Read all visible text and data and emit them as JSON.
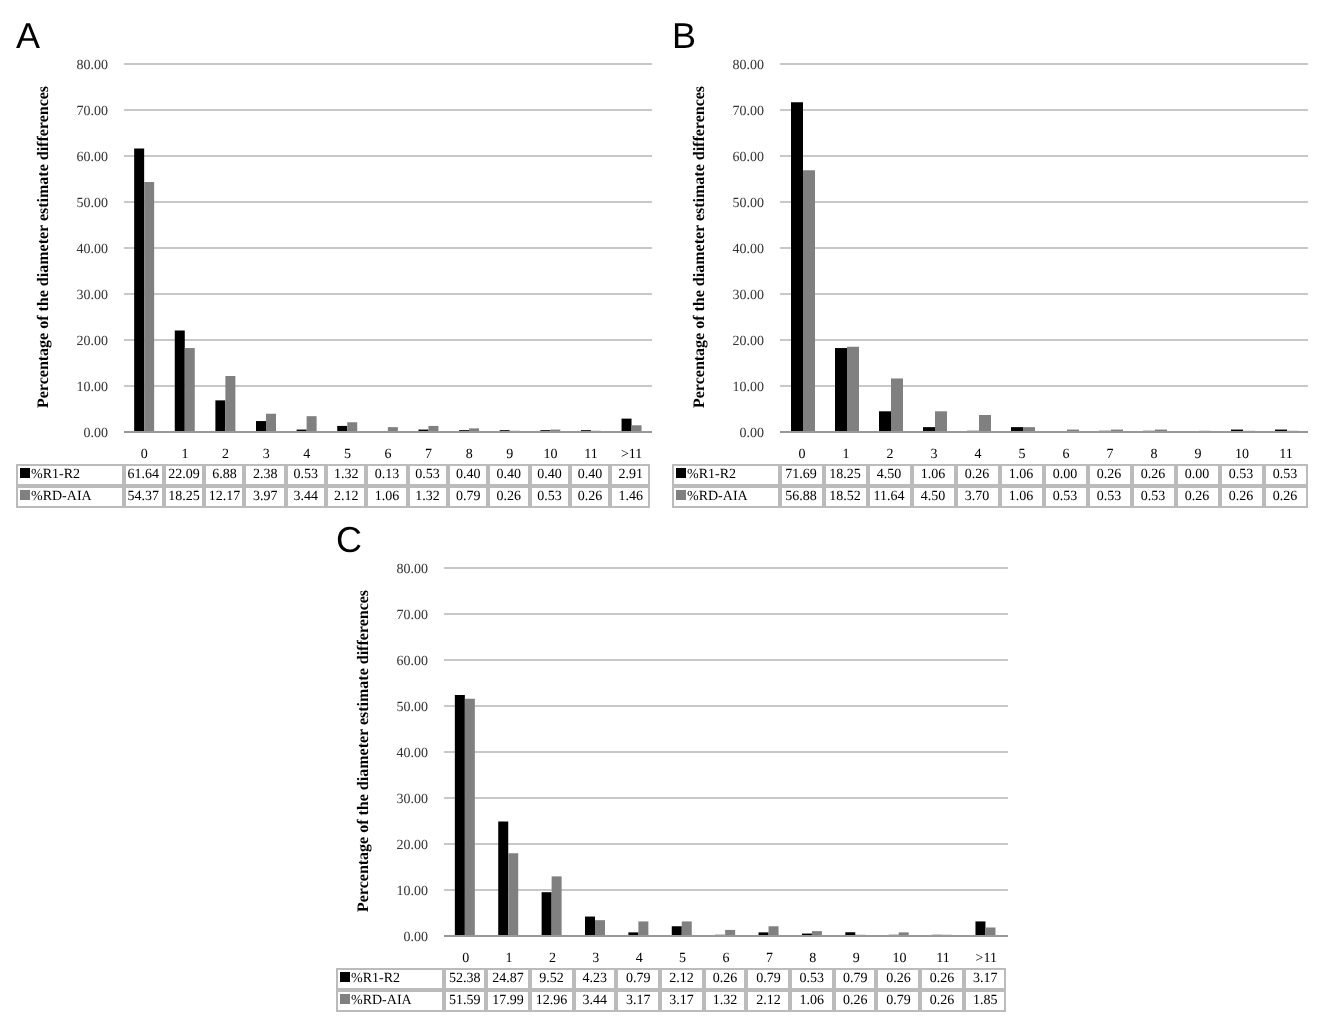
{
  "chart_data": [
    {
      "type": "bar",
      "title": "A",
      "ylabel": "Percentage of the diameter estimate differences",
      "categories": [
        "0",
        "1",
        "2",
        "3",
        "4",
        "5",
        "6",
        "7",
        "8",
        "9",
        "10",
        "11",
        ">11"
      ],
      "series": [
        {
          "name": "%R1-R2",
          "color": "#000000",
          "values": [
            61.64,
            22.09,
            6.88,
            2.38,
            0.53,
            1.32,
            0.13,
            0.53,
            0.4,
            0.4,
            0.4,
            0.4,
            2.91
          ],
          "value_labels": [
            "61.64",
            "22.09",
            "6.88",
            "2.38",
            "0.53",
            "1.32",
            "0.13",
            "0.53",
            "0.40",
            "0.40",
            "0.40",
            "0.40",
            "2.91"
          ]
        },
        {
          "name": "%RD-AIA",
          "color": "#808080",
          "values": [
            54.37,
            18.25,
            12.17,
            3.97,
            3.44,
            2.12,
            1.06,
            1.32,
            0.79,
            0.26,
            0.53,
            0.26,
            1.46
          ],
          "value_labels": [
            "54.37",
            "18.25",
            "12.17",
            "3.97",
            "3.44",
            "2.12",
            "1.06",
            "1.32",
            "0.79",
            "0.26",
            "0.53",
            "0.26",
            "1.46"
          ]
        }
      ],
      "ylim": [
        0,
        80
      ],
      "yticks": [
        {
          "value": 0,
          "label": "0.00"
        },
        {
          "value": 10,
          "label": "10.00"
        },
        {
          "value": 20,
          "label": "20.00"
        },
        {
          "value": 30,
          "label": "30.00"
        },
        {
          "value": 40,
          "label": "40.00"
        },
        {
          "value": 50,
          "label": "50.00"
        },
        {
          "value": 60,
          "label": "60.00"
        },
        {
          "value": 70,
          "label": "70.00"
        },
        {
          "value": 80,
          "label": "80.00"
        }
      ],
      "grid": "y",
      "legend": "bottom left"
    },
    {
      "type": "bar",
      "title": "B",
      "ylabel": "Percentage of the diameter estimate differences",
      "categories": [
        "0",
        "1",
        "2",
        "3",
        "4",
        "5",
        "6",
        "7",
        "8",
        "9",
        "10",
        "11"
      ],
      "series": [
        {
          "name": "%R1-R2",
          "color": "#000000",
          "values": [
            71.69,
            18.25,
            4.5,
            1.06,
            0.26,
            1.06,
            0.0,
            0.26,
            0.26,
            0.0,
            0.53,
            0.53
          ],
          "value_labels": [
            "71.69",
            "18.25",
            "4.50",
            "1.06",
            "0.26",
            "1.06",
            "0.00",
            "0.26",
            "0.26",
            "0.00",
            "0.53",
            "0.53"
          ]
        },
        {
          "name": "%RD-AIA",
          "color": "#808080",
          "values": [
            56.88,
            18.52,
            11.64,
            4.5,
            3.7,
            1.06,
            0.53,
            0.53,
            0.53,
            0.26,
            0.26,
            0.26
          ],
          "value_labels": [
            "56.88",
            "18.52",
            "11.64",
            "4.50",
            "3.70",
            "1.06",
            "0.53",
            "0.53",
            "0.53",
            "0.26",
            "0.26",
            "0.26"
          ]
        }
      ],
      "ylim": [
        0,
        80
      ],
      "yticks": [
        {
          "value": 0,
          "label": "0.00"
        },
        {
          "value": 10,
          "label": "10.00"
        },
        {
          "value": 20,
          "label": "20.00"
        },
        {
          "value": 30,
          "label": "30.00"
        },
        {
          "value": 40,
          "label": "40.00"
        },
        {
          "value": 50,
          "label": "50.00"
        },
        {
          "value": 60,
          "label": "60.00"
        },
        {
          "value": 70,
          "label": "70.00"
        },
        {
          "value": 80,
          "label": "80.00"
        }
      ],
      "grid": "y",
      "legend": "bottom left"
    },
    {
      "type": "bar",
      "title": "C",
      "ylabel": "Percentage of the diameter estimate differences",
      "categories": [
        "0",
        "1",
        "2",
        "3",
        "4",
        "5",
        "6",
        "7",
        "8",
        "9",
        "10",
        "11",
        ">11"
      ],
      "series": [
        {
          "name": "%R1-R2",
          "color": "#000000",
          "values": [
            52.38,
            24.87,
            9.52,
            4.23,
            0.79,
            2.12,
            0.26,
            0.79,
            0.53,
            0.79,
            0.26,
            0.26,
            3.17
          ],
          "value_labels": [
            "52.38",
            "24.87",
            "9.52",
            "4.23",
            "0.79",
            "2.12",
            "0.26",
            "0.79",
            "0.53",
            "0.79",
            "0.26",
            "0.26",
            "3.17"
          ]
        },
        {
          "name": "%RD-AIA",
          "color": "#808080",
          "values": [
            51.59,
            17.99,
            12.96,
            3.44,
            3.17,
            3.17,
            1.32,
            2.12,
            1.06,
            0.26,
            0.79,
            0.26,
            1.85
          ],
          "value_labels": [
            "51.59",
            "17.99",
            "12.96",
            "3.44",
            "3.17",
            "3.17",
            "1.32",
            "2.12",
            "1.06",
            "0.26",
            "0.79",
            "0.26",
            "1.85"
          ]
        }
      ],
      "ylim": [
        0,
        80
      ],
      "yticks": [
        {
          "value": 0,
          "label": "0.00"
        },
        {
          "value": 10,
          "label": "10.00"
        },
        {
          "value": 20,
          "label": "20.00"
        },
        {
          "value": 30,
          "label": "30.00"
        },
        {
          "value": 40,
          "label": "40.00"
        },
        {
          "value": 50,
          "label": "50.00"
        },
        {
          "value": 60,
          "label": "60.00"
        },
        {
          "value": 70,
          "label": "70.00"
        },
        {
          "value": 80,
          "label": "80.00"
        }
      ],
      "grid": "y",
      "legend": "bottom left"
    }
  ]
}
